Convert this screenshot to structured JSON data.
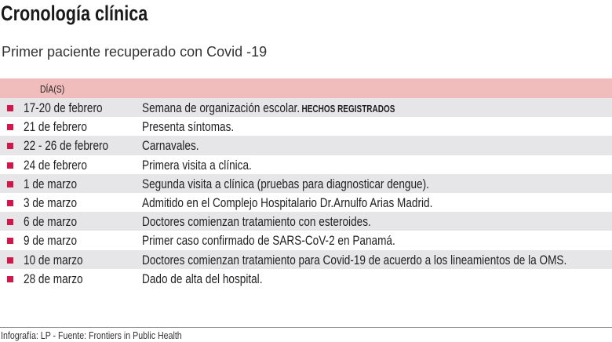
{
  "title": "Cronología clínica",
  "subtitle": "Primer paciente recuperado con Covid -19",
  "header": {
    "days_label": "DÍA(S)",
    "events_label": "HECHOS REGISTRADOS"
  },
  "accent": "#d3174b",
  "rows": [
    {
      "date": "17-20 de febrero",
      "event": "Semana de organización escolar."
    },
    {
      "date": "21 de febrero",
      "event": "Presenta síntomas."
    },
    {
      "date": "22 - 26 de febrero",
      "event": "Carnavales."
    },
    {
      "date": "24 de febrero",
      "event": "Primera visita a clínica."
    },
    {
      "date": "1 de marzo",
      "event": "Segunda visita a clínica (pruebas para diagnosticar dengue)."
    },
    {
      "date": "3 de marzo",
      "event": "Admitido en el Complejo Hospitalario Dr.Arnulfo Arias Madrid."
    },
    {
      "date": "6 de marzo",
      "event": "Doctores comienzan tratamiento con esteroides."
    },
    {
      "date": "9 de marzo",
      "event": "Primer caso confirmado de SARS-CoV-2 en Panamá."
    },
    {
      "date": "10 de marzo",
      "event": "Doctores comienzan tratamiento para  Covid-19 de acuerdo a los lineamientos de la OMS."
    },
    {
      "date": "28 de marzo",
      "event": "Dado de alta del hospital."
    }
  ],
  "footer": "Infografía: LP - Fuente: Frontiers in Public Health"
}
